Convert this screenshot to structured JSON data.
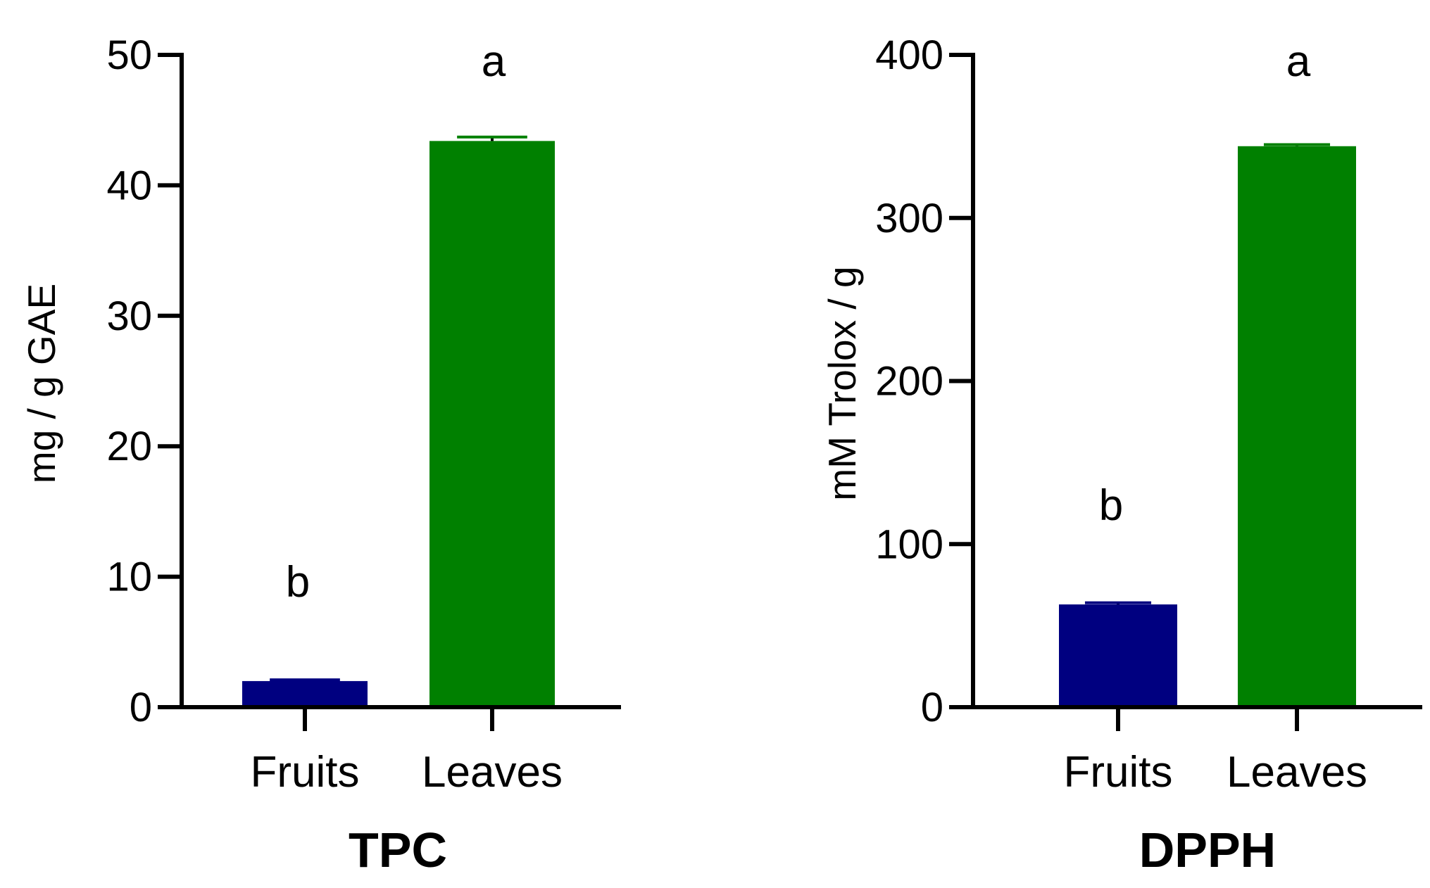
{
  "chart_data": [
    {
      "type": "bar",
      "title": "TPC",
      "xlabel": "",
      "ylabel": "mg / g GAE",
      "categories": [
        "Fruits",
        "Leaves"
      ],
      "values": [
        2.0,
        43.4
      ],
      "errors": [
        0.1,
        0.3
      ],
      "significance": [
        "b",
        "a"
      ],
      "ylim": [
        0,
        50
      ],
      "yticks": [
        0,
        10,
        20,
        30,
        40,
        50
      ],
      "bar_colors": [
        "#000080",
        "#008000"
      ],
      "grid": false
    },
    {
      "type": "bar",
      "title": "DPPH",
      "xlabel": "",
      "ylabel": "mM Trolox / g",
      "categories": [
        "Fruits",
        "Leaves"
      ],
      "values": [
        63,
        344
      ],
      "errors": [
        1,
        1
      ],
      "significance": [
        "b",
        "a"
      ],
      "ylim": [
        0,
        400
      ],
      "yticks": [
        0,
        100,
        200,
        300,
        400
      ],
      "bar_colors": [
        "#000080",
        "#008000"
      ],
      "grid": false
    }
  ]
}
